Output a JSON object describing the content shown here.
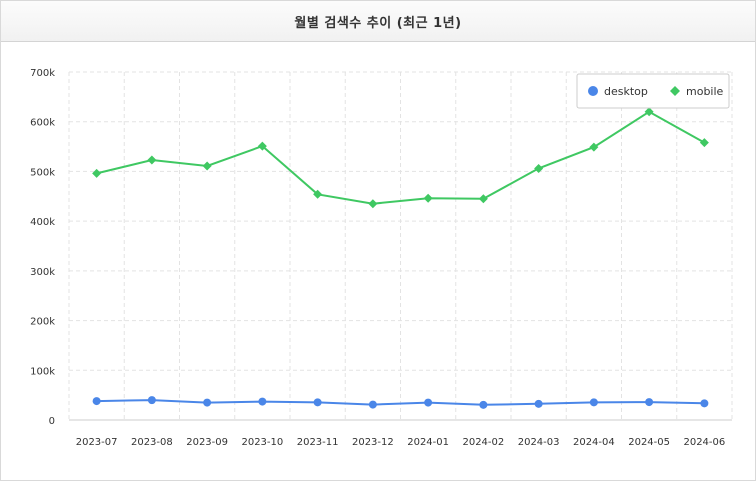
{
  "header": {
    "title": "월별 검색수 추이 (최근 1년)"
  },
  "chart_data": {
    "type": "line",
    "title": "월별 검색수 추이 (최근 1년)",
    "xlabel": "",
    "ylabel": "",
    "x": [
      "2023-07",
      "2023-08",
      "2023-09",
      "2023-10",
      "2023-11",
      "2023-12",
      "2024-01",
      "2024-02",
      "2024-03",
      "2024-04",
      "2024-05",
      "2024-06"
    ],
    "ylim": [
      0,
      700000
    ],
    "yticks": [
      0,
      100000,
      200000,
      300000,
      400000,
      500000,
      600000,
      700000
    ],
    "ytick_labels": [
      "0",
      "100k",
      "200k",
      "300k",
      "400k",
      "500k",
      "600k",
      "700k"
    ],
    "grid": true,
    "legend": "top-right",
    "series": [
      {
        "name": "desktop",
        "color": "#4a86e8",
        "marker": "circle",
        "values": [
          38000,
          40000,
          35000,
          37000,
          35500,
          31000,
          35000,
          30500,
          32500,
          35500,
          36000,
          33500
        ]
      },
      {
        "name": "mobile",
        "color": "#3fc862",
        "marker": "diamond",
        "values": [
          496000,
          523000,
          511000,
          551000,
          454000,
          435000,
          446000,
          445000,
          506000,
          549000,
          620000,
          558000
        ]
      }
    ]
  }
}
